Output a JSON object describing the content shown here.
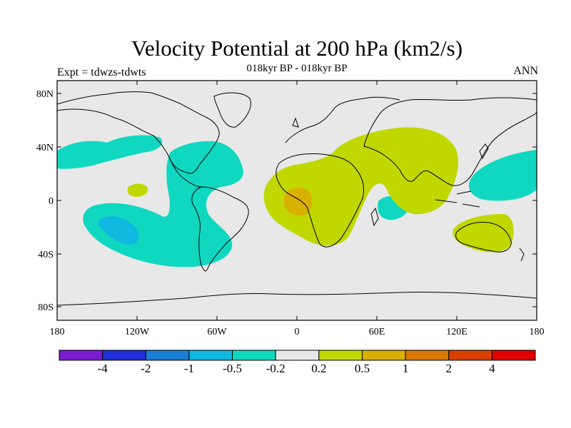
{
  "header": {
    "title": "Velocity Potential at 200 hPa (km2/s)",
    "subtitle": "018kyr BP - 018kyr BP",
    "left_label": "Expt = tdwzs-tdwts",
    "right_label": "ANN"
  },
  "map": {
    "background_color": "#e8e8e8",
    "lat_ticks": [
      "80N",
      "40N",
      "0",
      "40S",
      "80S"
    ],
    "lon_ticks": [
      "180",
      "120W",
      "60W",
      "0",
      "60E",
      "120E",
      "180"
    ]
  },
  "colorbar": {
    "colors": [
      "#7a1ccf",
      "#2030d8",
      "#1a7fd6",
      "#10b8e0",
      "#10d8c0",
      "#e8e8e8",
      "#c0d800",
      "#d8b000",
      "#d87800",
      "#d84000",
      "#e00000"
    ],
    "labels": [
      "-4",
      "-2",
      "-1",
      "-0.5",
      "-0.2",
      "0.2",
      "0.5",
      "1",
      "2",
      "4"
    ]
  },
  "colors": {
    "neg_light": "#10d8c0",
    "neg_medium": "#10b8e0",
    "pos_light": "#c0d800",
    "pos_medium": "#d8b000"
  }
}
